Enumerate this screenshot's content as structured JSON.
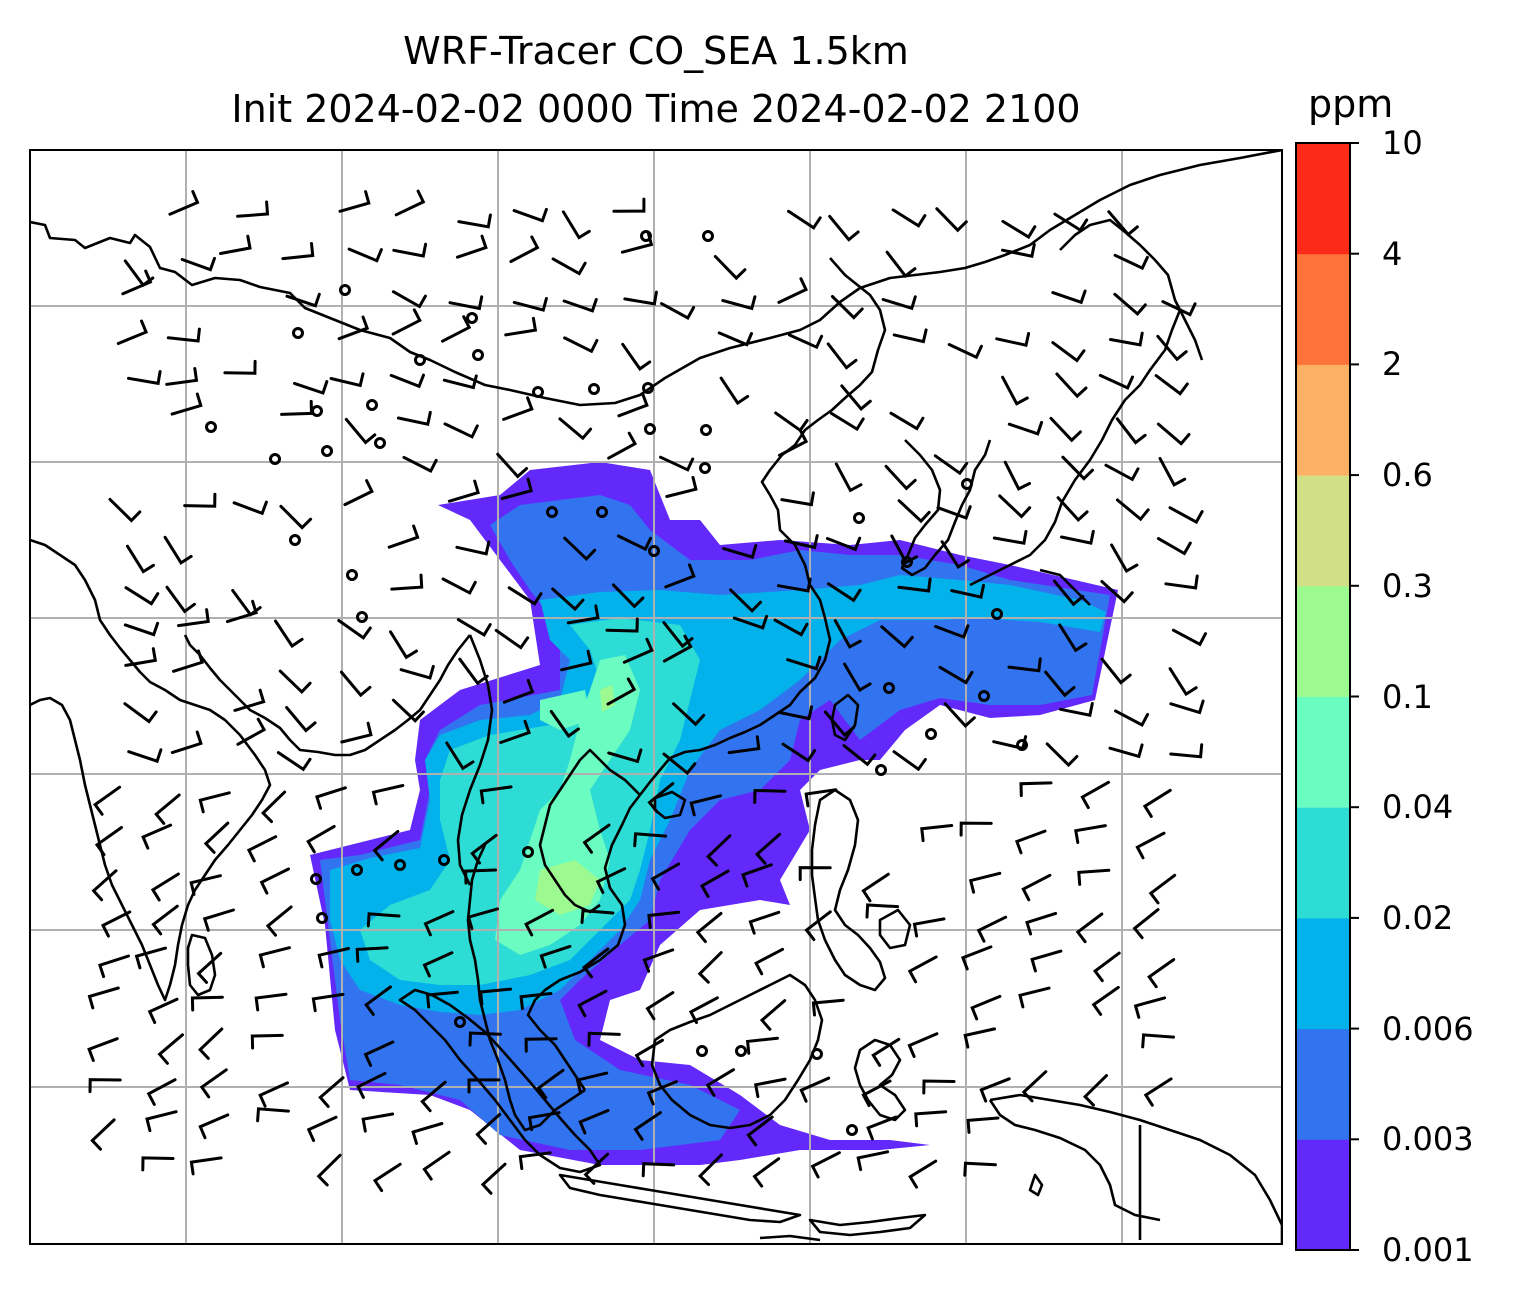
{
  "title": {
    "line1": "WRF-Tracer CO_SEA 1.5km",
    "line2": "Init 2024-02-02 0000 Time 2024-02-02 2100"
  },
  "colorbar": {
    "unit": "ppm",
    "levels": [
      "0.001",
      "0.003",
      "0.006",
      "0.02",
      "0.04",
      "0.1",
      "0.3",
      "0.6",
      "2",
      "4",
      "10"
    ],
    "colors": [
      "#6229fa",
      "#3274f0",
      "#03b2ea",
      "#2ddcd4",
      "#6afcc0",
      "#9cfa90",
      "#d1e086",
      "#fdb165",
      "#fd7339",
      "#fc2a18"
    ]
  },
  "map": {
    "type": "filled-contour-map-with-wind-barbs",
    "variable": "CO tracer concentration",
    "coastline_color": "#000000",
    "gridline_color": "#b0b0b0"
  }
}
